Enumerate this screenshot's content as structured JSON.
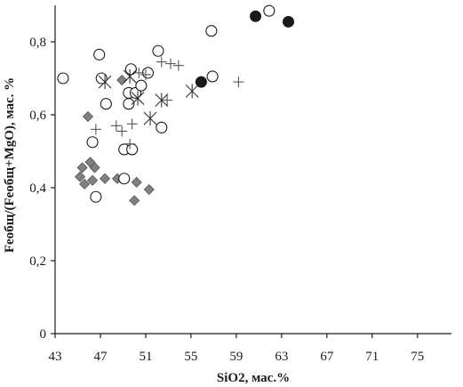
{
  "chart_data": {
    "type": "scatter",
    "title": "",
    "xlabel": "SiO2, мас.%",
    "ylabel": "Feобщ/(Feобщ+MgO), мас. %",
    "xlim": [
      43,
      78
    ],
    "ylim": [
      0,
      0.9
    ],
    "xticks": [
      43,
      47,
      51,
      55,
      59,
      63,
      67,
      71,
      75
    ],
    "yticks": [
      0,
      0.2,
      0.4,
      0.6,
      0.8
    ],
    "ytick_labels": [
      "0",
      "0,2",
      "0,4",
      "0,6",
      "0,8"
    ],
    "grid": false,
    "legend": "none",
    "series": [
      {
        "marker": "diamond",
        "color": "#808080",
        "points": [
          [
            45.9,
            0.595
          ],
          [
            45.4,
            0.455
          ],
          [
            46.1,
            0.47
          ],
          [
            46.5,
            0.455
          ],
          [
            45.2,
            0.43
          ],
          [
            45.6,
            0.41
          ],
          [
            46.3,
            0.42
          ],
          [
            47.4,
            0.425
          ],
          [
            48.5,
            0.425
          ],
          [
            50.2,
            0.415
          ],
          [
            51.3,
            0.395
          ],
          [
            50.0,
            0.365
          ],
          [
            48.9,
            0.695
          ]
        ]
      },
      {
        "marker": "circle-open",
        "color": "#1a1a1a",
        "points": [
          [
            43.7,
            0.7
          ],
          [
            46.9,
            0.765
          ],
          [
            47.1,
            0.7
          ],
          [
            47.5,
            0.63
          ],
          [
            49.7,
            0.725
          ],
          [
            49.5,
            0.66
          ],
          [
            50.1,
            0.66
          ],
          [
            50.6,
            0.68
          ],
          [
            52.1,
            0.775
          ],
          [
            51.2,
            0.715
          ],
          [
            49.5,
            0.63
          ],
          [
            52.4,
            0.565
          ],
          [
            46.3,
            0.525
          ],
          [
            49.1,
            0.505
          ],
          [
            49.8,
            0.505
          ],
          [
            46.6,
            0.375
          ],
          [
            49.1,
            0.425
          ],
          [
            56.8,
            0.83
          ],
          [
            56.9,
            0.705
          ],
          [
            61.9,
            0.885
          ]
        ]
      },
      {
        "marker": "circle-filled",
        "color": "#1a1a1a",
        "points": [
          [
            60.7,
            0.87
          ],
          [
            63.6,
            0.855
          ],
          [
            55.9,
            0.69
          ]
        ]
      },
      {
        "marker": "plus",
        "color": "#555555",
        "points": [
          [
            52.4,
            0.745
          ],
          [
            53.2,
            0.74
          ],
          [
            53.9,
            0.735
          ],
          [
            59.2,
            0.69
          ],
          [
            50.4,
            0.715
          ],
          [
            51.0,
            0.71
          ],
          [
            46.6,
            0.56
          ],
          [
            48.4,
            0.57
          ],
          [
            48.9,
            0.555
          ],
          [
            49.8,
            0.575
          ],
          [
            49.6,
            0.52
          ],
          [
            52.9,
            0.64
          ]
        ]
      },
      {
        "marker": "asterisk",
        "color": "#333333",
        "points": [
          [
            47.4,
            0.69
          ],
          [
            49.6,
            0.705
          ],
          [
            50.3,
            0.645
          ],
          [
            52.4,
            0.64
          ],
          [
            51.4,
            0.59
          ],
          [
            55.1,
            0.665
          ]
        ]
      }
    ]
  }
}
